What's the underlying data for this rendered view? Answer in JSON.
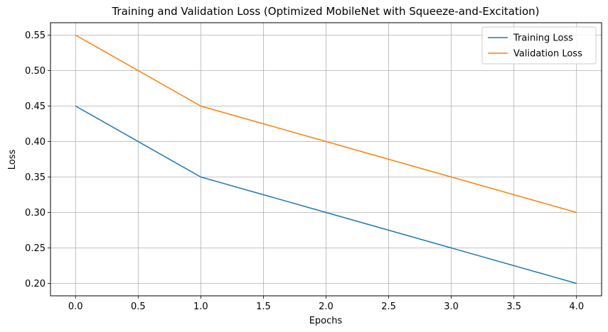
{
  "chart_data": {
    "type": "line",
    "title": "Training and Validation Loss (Optimized MobileNet with Squeeze-and-Excitation)",
    "xlabel": "Epochs",
    "ylabel": "Loss",
    "x": [
      0,
      1,
      2,
      3,
      4
    ],
    "series": [
      {
        "name": "Training Loss",
        "color": "#1f77b4",
        "values": [
          0.45,
          0.35,
          0.3,
          0.25,
          0.2
        ]
      },
      {
        "name": "Validation Loss",
        "color": "#ff7f0e",
        "values": [
          0.55,
          0.45,
          0.4,
          0.35,
          0.3
        ]
      }
    ],
    "xlim": [
      -0.2,
      4.2
    ],
    "ylim": [
      0.1825,
      0.5675
    ],
    "xticks": [
      0.0,
      0.5,
      1.0,
      1.5,
      2.0,
      2.5,
      3.0,
      3.5,
      4.0
    ],
    "xtick_labels": [
      "0.0",
      "0.5",
      "1.0",
      "1.5",
      "2.0",
      "2.5",
      "3.0",
      "3.5",
      "4.0"
    ],
    "yticks": [
      0.2,
      0.25,
      0.3,
      0.35,
      0.4,
      0.45,
      0.5,
      0.55
    ],
    "ytick_labels": [
      "0.20",
      "0.25",
      "0.30",
      "0.35",
      "0.40",
      "0.45",
      "0.50",
      "0.55"
    ],
    "grid": true,
    "legend_position": "top-right"
  }
}
